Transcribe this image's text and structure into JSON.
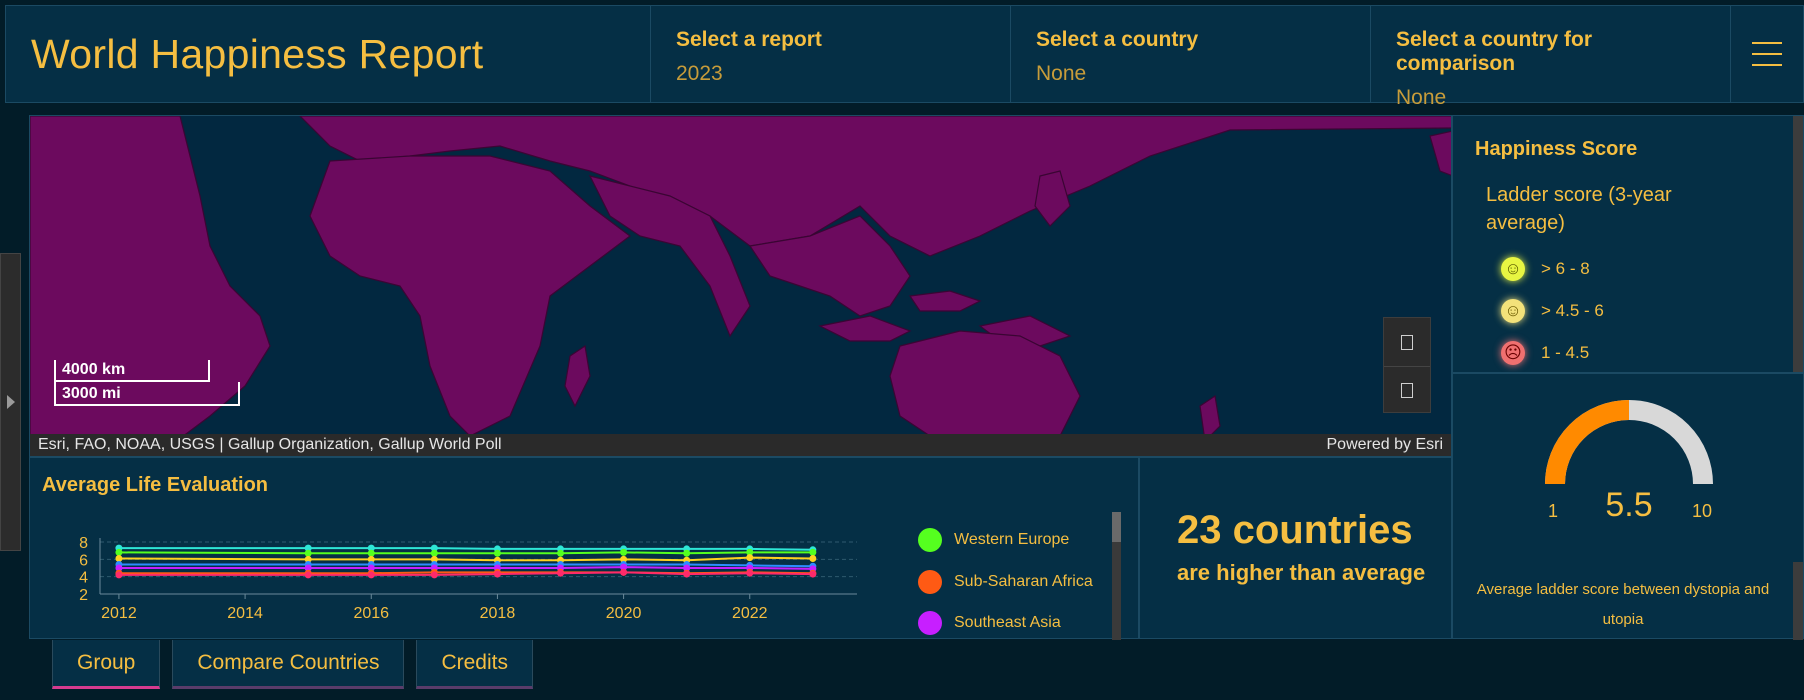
{
  "header": {
    "title": "World Happiness Report",
    "selectors": [
      {
        "label": "Select a report",
        "value": "2023"
      },
      {
        "label": "Select a country",
        "value": "None"
      },
      {
        "label": "Select a country for comparison",
        "value": "None"
      }
    ],
    "menu_icon": "hamburger-icon"
  },
  "map": {
    "scale_km": "4000 km",
    "scale_mi": "3000 mi",
    "attribution": "Esri, FAO, NOAA, USGS | Gallup Organization, Gallup World Poll",
    "powered_by": "Powered by Esri",
    "land_color": "#6c0a5e",
    "water_color": "#022840"
  },
  "legend": {
    "title": "Happiness Score",
    "subtitle": "Ladder score (3-year average)",
    "items": [
      {
        "label": "> 6 - 8",
        "color": "#e8f542",
        "icon": "happy-face-icon"
      },
      {
        "label": "> 4.5 - 6",
        "color": "#f3e27a",
        "icon": "neutral-face-icon"
      },
      {
        "label": "1 - 4.5",
        "color": "#f07070",
        "icon": "sad-face-icon"
      }
    ]
  },
  "gauge": {
    "min": "1",
    "max": "10",
    "value": "5.5",
    "fill_color": "#ff8a00",
    "track_color": "#d8d8d8",
    "description": "Average ladder score between dystopia and utopia"
  },
  "stat": {
    "headline": "23 countries",
    "subtext": "are higher than average"
  },
  "chart_data": {
    "type": "line",
    "title": "Average Life Evaluation",
    "x": [
      2012,
      2015,
      2016,
      2017,
      2018,
      2019,
      2020,
      2021,
      2022,
      2023
    ],
    "xticks": [
      "2012",
      "2014",
      "2016",
      "2018",
      "2020",
      "2022"
    ],
    "yticks": [
      "8",
      "6",
      "4",
      "2"
    ],
    "ylim": [
      2,
      8
    ],
    "xlim": [
      2011.7,
      2023.7
    ],
    "grid": true,
    "series": [
      {
        "name": "",
        "color": "#2ee6d6",
        "values": [
          7.3,
          7.3,
          7.3,
          7.3,
          7.2,
          7.2,
          7.2,
          7.2,
          7.2,
          7.1
        ]
      },
      {
        "name": "Western Europe",
        "color": "#55ff1f",
        "values": [
          6.8,
          6.7,
          6.7,
          6.7,
          6.7,
          6.7,
          6.8,
          6.7,
          6.8,
          6.8
        ]
      },
      {
        "name": "",
        "color": "#ffd21f",
        "values": [
          6.1,
          6.0,
          6.0,
          6.0,
          5.9,
          5.9,
          6.0,
          5.9,
          6.2,
          6.1
        ]
      },
      {
        "name": "",
        "color": "#2d8cff",
        "values": [
          5.4,
          5.4,
          5.4,
          5.4,
          5.4,
          5.4,
          5.4,
          5.4,
          5.3,
          5.2
        ]
      },
      {
        "name": "Southeast Asia",
        "color": "#c71fff",
        "values": [
          5.0,
          5.0,
          5.0,
          5.0,
          5.0,
          5.0,
          5.1,
          5.0,
          5.0,
          4.9
        ]
      },
      {
        "name": "Sub-Saharan Africa",
        "color": "#ff5a14",
        "values": [
          4.4,
          4.4,
          4.4,
          4.5,
          4.5,
          4.5,
          4.5,
          4.4,
          4.5,
          4.4
        ]
      },
      {
        "name": "",
        "color": "#ff2a6a",
        "values": [
          4.2,
          4.2,
          4.2,
          4.2,
          4.3,
          4.4,
          4.5,
          4.3,
          4.4,
          4.3
        ]
      }
    ],
    "legend_entries": [
      {
        "name": "Western Europe",
        "color": "#55ff1f"
      },
      {
        "name": "Sub-Saharan Africa",
        "color": "#ff5a14"
      },
      {
        "name": "Southeast Asia",
        "color": "#c71fff"
      }
    ]
  },
  "tabs": [
    {
      "label": "Group",
      "active": true
    },
    {
      "label": "Compare Countries",
      "active": false
    },
    {
      "label": "Credits",
      "active": false
    }
  ]
}
